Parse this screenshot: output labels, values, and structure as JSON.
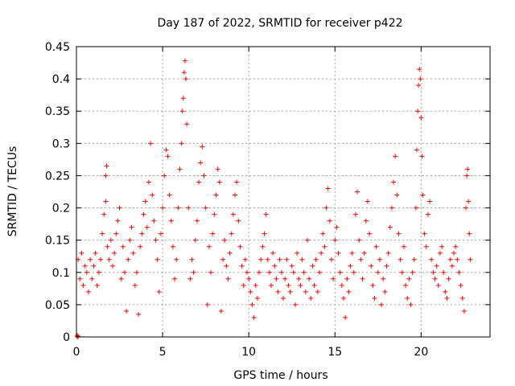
{
  "chart_data": {
    "type": "scatter",
    "title": "Day 187 of 2022, SRMTID for receiver p422",
    "xlabel": "GPS time / hours",
    "ylabel": "SRMTID / TECUs",
    "xlim": [
      0,
      24
    ],
    "ylim": [
      0,
      0.45
    ],
    "x_ticks": [
      0,
      5,
      10,
      15,
      20
    ],
    "x_tick_labels": [
      "0",
      "5",
      "10",
      "15",
      "20"
    ],
    "y_ticks": [
      0,
      0.05,
      0.1,
      0.15,
      0.2,
      0.25,
      0.3,
      0.35,
      0.4,
      0.45
    ],
    "y_tick_labels": [
      "0",
      "0.05",
      "0.1",
      "0.15",
      "0.2",
      "0.25",
      "0.3",
      "0.35",
      "0.4",
      "0.45"
    ],
    "grid": true,
    "marker": "+",
    "marker_color": "#ff0000",
    "series": [
      {
        "name": "SRMTID",
        "points": [
          [
            0.05,
            0.0
          ],
          [
            0.05,
            0.002
          ],
          [
            0.1,
            0.001
          ],
          [
            0.1,
            0.12
          ],
          [
            0.2,
            0.09
          ],
          [
            0.3,
            0.13
          ],
          [
            0.4,
            0.08
          ],
          [
            0.5,
            0.11
          ],
          [
            0.6,
            0.1
          ],
          [
            0.7,
            0.07
          ],
          [
            0.8,
            0.12
          ],
          [
            0.9,
            0.09
          ],
          [
            1.0,
            0.11
          ],
          [
            1.1,
            0.13
          ],
          [
            1.2,
            0.08
          ],
          [
            1.3,
            0.1
          ],
          [
            1.4,
            0.12
          ],
          [
            1.5,
            0.16
          ],
          [
            1.6,
            0.19
          ],
          [
            1.7,
            0.21
          ],
          [
            1.7,
            0.25
          ],
          [
            1.75,
            0.265
          ],
          [
            1.8,
            0.14
          ],
          [
            1.9,
            0.12
          ],
          [
            2.0,
            0.15
          ],
          [
            2.1,
            0.11
          ],
          [
            2.2,
            0.13
          ],
          [
            2.3,
            0.16
          ],
          [
            2.4,
            0.18
          ],
          [
            2.5,
            0.2
          ],
          [
            2.6,
            0.09
          ],
          [
            2.7,
            0.14
          ],
          [
            2.8,
            0.1
          ],
          [
            2.9,
            0.04
          ],
          [
            3.0,
            0.12
          ],
          [
            3.1,
            0.15
          ],
          [
            3.2,
            0.17
          ],
          [
            3.3,
            0.13
          ],
          [
            3.4,
            0.08
          ],
          [
            3.5,
            0.1
          ],
          [
            3.6,
            0.035
          ],
          [
            3.7,
            0.14
          ],
          [
            3.8,
            0.16
          ],
          [
            3.9,
            0.19
          ],
          [
            4.0,
            0.21
          ],
          [
            4.1,
            0.17
          ],
          [
            4.2,
            0.24
          ],
          [
            4.3,
            0.3
          ],
          [
            4.4,
            0.22
          ],
          [
            4.5,
            0.18
          ],
          [
            4.6,
            0.15
          ],
          [
            4.7,
            0.12
          ],
          [
            4.8,
            0.07
          ],
          [
            4.9,
            0.16
          ],
          [
            5.0,
            0.2
          ],
          [
            5.1,
            0.25
          ],
          [
            5.2,
            0.29
          ],
          [
            5.3,
            0.28
          ],
          [
            5.4,
            0.22
          ],
          [
            5.5,
            0.18
          ],
          [
            5.6,
            0.14
          ],
          [
            5.7,
            0.09
          ],
          [
            5.8,
            0.12
          ],
          [
            5.9,
            0.2
          ],
          [
            6.0,
            0.26
          ],
          [
            6.1,
            0.3
          ],
          [
            6.15,
            0.35
          ],
          [
            6.2,
            0.37
          ],
          [
            6.25,
            0.41
          ],
          [
            6.3,
            0.428
          ],
          [
            6.35,
            0.4
          ],
          [
            6.4,
            0.33
          ],
          [
            6.5,
            0.2
          ],
          [
            6.6,
            0.09
          ],
          [
            6.7,
            0.12
          ],
          [
            6.8,
            0.1
          ],
          [
            6.9,
            0.15
          ],
          [
            7.0,
            0.18
          ],
          [
            7.1,
            0.24
          ],
          [
            7.2,
            0.27
          ],
          [
            7.3,
            0.295
          ],
          [
            7.4,
            0.25
          ],
          [
            7.5,
            0.2
          ],
          [
            7.6,
            0.05
          ],
          [
            7.7,
            0.14
          ],
          [
            7.8,
            0.1
          ],
          [
            7.9,
            0.16
          ],
          [
            8.0,
            0.19
          ],
          [
            8.1,
            0.22
          ],
          [
            8.2,
            0.26
          ],
          [
            8.3,
            0.24
          ],
          [
            8.4,
            0.04
          ],
          [
            8.5,
            0.12
          ],
          [
            8.6,
            0.15
          ],
          [
            8.7,
            0.11
          ],
          [
            8.8,
            0.09
          ],
          [
            8.9,
            0.13
          ],
          [
            9.0,
            0.16
          ],
          [
            9.1,
            0.19
          ],
          [
            9.2,
            0.22
          ],
          [
            9.3,
            0.24
          ],
          [
            9.4,
            0.18
          ],
          [
            9.5,
            0.14
          ],
          [
            9.6,
            0.11
          ],
          [
            9.7,
            0.08
          ],
          [
            9.8,
            0.12
          ],
          [
            9.9,
            0.1
          ],
          [
            10.0,
            0.09
          ],
          [
            10.1,
            0.07
          ],
          [
            10.2,
            0.05
          ],
          [
            10.3,
            0.03
          ],
          [
            10.4,
            0.08
          ],
          [
            10.5,
            0.06
          ],
          [
            10.6,
            0.1
          ],
          [
            10.7,
            0.12
          ],
          [
            10.8,
            0.14
          ],
          [
            10.9,
            0.16
          ],
          [
            11.0,
            0.19
          ],
          [
            11.1,
            0.12
          ],
          [
            11.2,
            0.1
          ],
          [
            11.3,
            0.08
          ],
          [
            11.4,
            0.13
          ],
          [
            11.5,
            0.11
          ],
          [
            11.6,
            0.09
          ],
          [
            11.7,
            0.07
          ],
          [
            11.8,
            0.12
          ],
          [
            11.9,
            0.1
          ],
          [
            12.0,
            0.06
          ],
          [
            12.1,
            0.09
          ],
          [
            12.2,
            0.12
          ],
          [
            12.3,
            0.08
          ],
          [
            12.4,
            0.07
          ],
          [
            12.5,
            0.11
          ],
          [
            12.6,
            0.1
          ],
          [
            12.7,
            0.05
          ],
          [
            12.8,
            0.13
          ],
          [
            12.9,
            0.09
          ],
          [
            13.0,
            0.08
          ],
          [
            13.1,
            0.12
          ],
          [
            13.2,
            0.1
          ],
          [
            13.3,
            0.07
          ],
          [
            13.4,
            0.15
          ],
          [
            13.5,
            0.09
          ],
          [
            13.6,
            0.06
          ],
          [
            13.7,
            0.11
          ],
          [
            13.8,
            0.08
          ],
          [
            13.9,
            0.12
          ],
          [
            14.0,
            0.07
          ],
          [
            14.1,
            0.1
          ],
          [
            14.2,
            0.13
          ],
          [
            14.3,
            0.16
          ],
          [
            14.4,
            0.14
          ],
          [
            14.5,
            0.2
          ],
          [
            14.6,
            0.23
          ],
          [
            14.7,
            0.18
          ],
          [
            14.8,
            0.12
          ],
          [
            14.9,
            0.09
          ],
          [
            15.0,
            0.15
          ],
          [
            15.1,
            0.17
          ],
          [
            15.2,
            0.13
          ],
          [
            15.3,
            0.1
          ],
          [
            15.4,
            0.08
          ],
          [
            15.5,
            0.06
          ],
          [
            15.6,
            0.03
          ],
          [
            15.7,
            0.09
          ],
          [
            15.8,
            0.07
          ],
          [
            15.9,
            0.11
          ],
          [
            16.0,
            0.13
          ],
          [
            16.1,
            0.1
          ],
          [
            16.2,
            0.19
          ],
          [
            16.3,
            0.225
          ],
          [
            16.4,
            0.15
          ],
          [
            16.5,
            0.12
          ],
          [
            16.6,
            0.09
          ],
          [
            16.7,
            0.13
          ],
          [
            16.8,
            0.18
          ],
          [
            16.9,
            0.21
          ],
          [
            17.0,
            0.16
          ],
          [
            17.1,
            0.11
          ],
          [
            17.2,
            0.08
          ],
          [
            17.3,
            0.06
          ],
          [
            17.4,
            0.14
          ],
          [
            17.5,
            0.1
          ],
          [
            17.6,
            0.12
          ],
          [
            17.7,
            0.05
          ],
          [
            17.8,
            0.09
          ],
          [
            17.9,
            0.07
          ],
          [
            18.0,
            0.11
          ],
          [
            18.1,
            0.13
          ],
          [
            18.2,
            0.17
          ],
          [
            18.3,
            0.2
          ],
          [
            18.4,
            0.24
          ],
          [
            18.5,
            0.28
          ],
          [
            18.6,
            0.22
          ],
          [
            18.7,
            0.16
          ],
          [
            18.8,
            0.12
          ],
          [
            18.9,
            0.1
          ],
          [
            19.0,
            0.14
          ],
          [
            19.1,
            0.08
          ],
          [
            19.2,
            0.06
          ],
          [
            19.3,
            0.09
          ],
          [
            19.4,
            0.05
          ],
          [
            19.5,
            0.1
          ],
          [
            19.6,
            0.12
          ],
          [
            19.7,
            0.2
          ],
          [
            19.75,
            0.29
          ],
          [
            19.8,
            0.35
          ],
          [
            19.85,
            0.39
          ],
          [
            19.9,
            0.415
          ],
          [
            19.95,
            0.4
          ],
          [
            20.0,
            0.34
          ],
          [
            20.05,
            0.28
          ],
          [
            20.1,
            0.22
          ],
          [
            20.2,
            0.16
          ],
          [
            20.3,
            0.14
          ],
          [
            20.4,
            0.19
          ],
          [
            20.5,
            0.21
          ],
          [
            20.6,
            0.12
          ],
          [
            20.7,
            0.1
          ],
          [
            20.8,
            0.09
          ],
          [
            20.9,
            0.11
          ],
          [
            21.0,
            0.08
          ],
          [
            21.1,
            0.13
          ],
          [
            21.2,
            0.14
          ],
          [
            21.3,
            0.1
          ],
          [
            21.4,
            0.07
          ],
          [
            21.5,
            0.06
          ],
          [
            21.6,
            0.09
          ],
          [
            21.7,
            0.12
          ],
          [
            21.8,
            0.11
          ],
          [
            21.9,
            0.13
          ],
          [
            22.0,
            0.14
          ],
          [
            22.1,
            0.12
          ],
          [
            22.2,
            0.1
          ],
          [
            22.3,
            0.08
          ],
          [
            22.4,
            0.06
          ],
          [
            22.5,
            0.04
          ],
          [
            22.6,
            0.2
          ],
          [
            22.65,
            0.25
          ],
          [
            22.7,
            0.26
          ],
          [
            22.75,
            0.21
          ],
          [
            22.8,
            0.16
          ],
          [
            22.85,
            0.12
          ]
        ]
      }
    ]
  }
}
